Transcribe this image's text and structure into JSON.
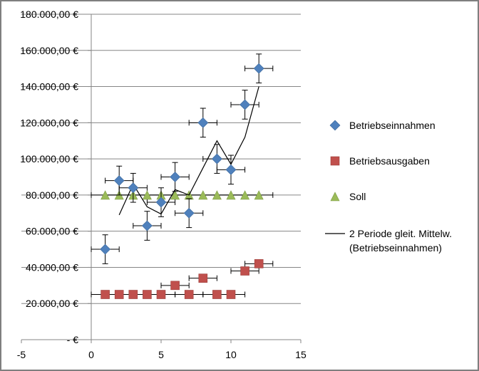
{
  "chart_data": {
    "type": "scatter",
    "title": "",
    "xlabel": "",
    "ylabel": "",
    "xlim": [
      -5,
      15
    ],
    "ylim": [
      0,
      180000
    ],
    "x_ticks": [
      -5,
      0,
      5,
      10,
      15
    ],
    "x_tick_labels": [
      "-5",
      "0",
      "5",
      "10",
      "15"
    ],
    "y_ticks": [
      0,
      20000,
      40000,
      60000,
      80000,
      100000,
      120000,
      140000,
      160000,
      180000
    ],
    "y_tick_labels": [
      "-   €",
      "20.000,00 €",
      "40.000,00 €",
      "60.000,00 €",
      "80.000,00 €",
      "100.000,00 €",
      "120.000,00 €",
      "140.000,00 €",
      "160.000,00 €",
      "180.000,00 €"
    ],
    "grid": "horizontal",
    "legend_position": "right",
    "series": [
      {
        "name": "Betriebseinnahmen",
        "marker": "diamond",
        "color": "#4f81bd",
        "x": [
          1,
          2,
          3,
          4,
          5,
          6,
          7,
          8,
          9,
          10,
          11,
          12
        ],
        "y": [
          50000,
          88000,
          84000,
          63000,
          76000,
          90000,
          70000,
          120000,
          100000,
          94000,
          130000,
          150000
        ],
        "x_error": 1,
        "y_error": 8000
      },
      {
        "name": "Betriebsausgaben",
        "marker": "square",
        "color": "#c0504d",
        "x": [
          1,
          2,
          3,
          4,
          5,
          6,
          7,
          8,
          9,
          10,
          11,
          12
        ],
        "y": [
          25000,
          25000,
          25000,
          25000,
          25000,
          30000,
          25000,
          34000,
          25000,
          25000,
          38000,
          42000
        ],
        "x_error": 1
      },
      {
        "name": "Soll",
        "marker": "triangle",
        "color": "#9bbb59",
        "x": [
          1,
          2,
          3,
          4,
          5,
          6,
          7,
          8,
          9,
          10,
          11,
          12
        ],
        "y": [
          80000,
          80000,
          80000,
          80000,
          80000,
          80000,
          80000,
          80000,
          80000,
          80000,
          80000,
          80000
        ],
        "x_error": 1
      },
      {
        "name": "2 Periode gleit. Mittelw. (Betriebseinnahmen)",
        "legend_lines": [
          "2 Periode gleit. Mittelw.",
          "(Betriebseinnahmen)"
        ],
        "marker": "line",
        "color": "#000000",
        "x": [
          2,
          3,
          4,
          5,
          6,
          7,
          8,
          9,
          10,
          11,
          12
        ],
        "y": [
          69000,
          86000,
          73500,
          69500,
          83000,
          80000,
          95000,
          110000,
          97000,
          112000,
          140000
        ]
      }
    ]
  }
}
